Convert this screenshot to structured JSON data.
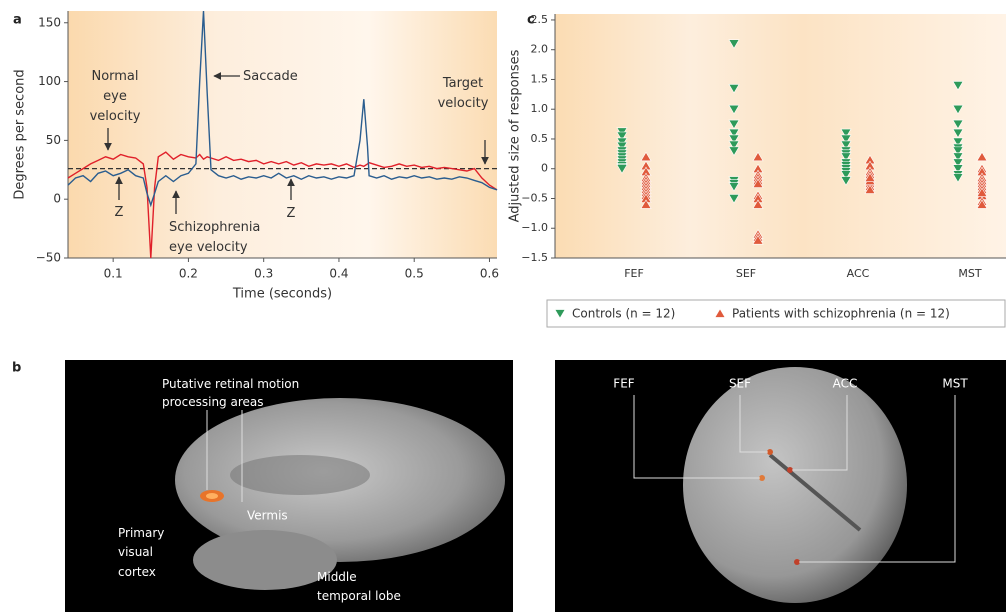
{
  "chart_data": [
    {
      "type": "line",
      "panel_label": "a",
      "ylabel": "Degrees per second",
      "xlabel": "Time (seconds)",
      "xlim": [
        0.04,
        0.61
      ],
      "ylim": [
        -50,
        160
      ],
      "xticks": [
        0.1,
        0.2,
        0.3,
        0.4,
        0.5,
        0.6
      ],
      "yticks": [
        {
          "value": -50,
          "label": "−50"
        },
        0,
        50,
        100,
        150
      ],
      "x": [
        0.04,
        0.05,
        0.06,
        0.07,
        0.08,
        0.09,
        0.1,
        0.11,
        0.12,
        0.13,
        0.14,
        0.145,
        0.15,
        0.155,
        0.16,
        0.17,
        0.18,
        0.19,
        0.2,
        0.21,
        0.215,
        0.22,
        0.225,
        0.23,
        0.24,
        0.25,
        0.26,
        0.27,
        0.28,
        0.29,
        0.3,
        0.31,
        0.32,
        0.33,
        0.34,
        0.35,
        0.36,
        0.37,
        0.38,
        0.39,
        0.4,
        0.41,
        0.42,
        0.428,
        0.433,
        0.438,
        0.44,
        0.45,
        0.46,
        0.47,
        0.48,
        0.49,
        0.5,
        0.51,
        0.52,
        0.53,
        0.54,
        0.55,
        0.56,
        0.57,
        0.58,
        0.59,
        0.6,
        0.61
      ],
      "series": [
        {
          "color": "#e0202a",
          "values": [
            18,
            22,
            26,
            30,
            33,
            36,
            34,
            38,
            36,
            35,
            30,
            10,
            -50,
            10,
            36,
            40,
            34,
            38,
            36,
            35,
            38,
            34,
            36,
            35,
            33,
            36,
            33,
            34,
            32,
            33,
            30,
            32,
            30,
            32,
            29,
            31,
            28,
            30,
            29,
            30,
            28,
            30,
            27,
            29,
            28,
            30,
            31,
            29,
            27,
            28,
            30,
            28,
            29,
            27,
            28,
            26,
            27,
            26,
            25,
            24,
            26,
            18,
            12,
            8
          ]
        },
        {
          "color": "#2a5d8f",
          "values": [
            12,
            18,
            20,
            15,
            22,
            24,
            20,
            22,
            25,
            20,
            18,
            5,
            -5,
            5,
            15,
            20,
            15,
            20,
            22,
            30,
            100,
            160,
            90,
            25,
            20,
            18,
            20,
            17,
            19,
            18,
            20,
            18,
            22,
            18,
            20,
            17,
            20,
            18,
            19,
            17,
            19,
            18,
            20,
            50,
            85,
            45,
            20,
            18,
            20,
            17,
            19,
            18,
            20,
            18,
            19,
            17,
            18,
            17,
            19,
            18,
            16,
            14,
            10,
            8
          ]
        }
      ],
      "reference_line": {
        "value": 26,
        "color": "#333333"
      },
      "annotations": [
        {
          "lines": [
            "Normal",
            "eye",
            "velocity"
          ]
        },
        {
          "lines": [
            "Saccade"
          ]
        },
        {
          "lines": [
            "Target",
            "velocity"
          ]
        },
        {
          "lines": [
            "Z"
          ]
        },
        {
          "lines": [
            "Z"
          ]
        },
        {
          "lines": [
            "Schizophrenia",
            "eye velocity"
          ]
        }
      ]
    },
    {
      "type": "scatter",
      "panel_label": "c",
      "ylabel": "Adjusted size of responses",
      "categories": [
        "FEF",
        "SEF",
        "ACC",
        "MST"
      ],
      "ylim": [
        -1.5,
        2.6
      ],
      "yticks": [
        {
          "value": -1.5,
          "label": "−1.5"
        },
        {
          "value": -1,
          "label": "−1.0"
        },
        {
          "value": -0.5,
          "label": "−0.5"
        },
        0,
        0.5,
        {
          "value": 1,
          "label": "1.0"
        },
        1.5,
        {
          "value": 2,
          "label": "2.0"
        },
        2.5
      ],
      "series": [
        {
          "name": "Controls (n = 12)",
          "color": "#2e9a5a",
          "marker": "triangle-down",
          "values": [
            [
              0.62,
              0.55,
              0.45,
              0.38,
              0.3,
              0.25,
              0.2,
              0.15,
              0.1,
              0.05,
              0.02,
              0.0
            ],
            [
              2.1,
              1.35,
              1.0,
              0.75,
              0.6,
              0.5,
              0.4,
              0.3,
              -0.2,
              -0.25,
              -0.3,
              -0.5
            ],
            [
              0.6,
              0.5,
              0.4,
              0.3,
              0.25,
              0.2,
              0.1,
              0.05,
              0.0,
              -0.05,
              -0.1,
              -0.2
            ],
            [
              1.4,
              1.0,
              0.75,
              0.6,
              0.45,
              0.35,
              0.3,
              0.2,
              0.1,
              0.0,
              -0.1,
              -0.15
            ]
          ]
        },
        {
          "name": "Patients with schizophrenia (n = 12)",
          "color": "#e05a3c",
          "marker": "triangle-up",
          "values": [
            [
              0.2,
              0.05,
              -0.05,
              -0.15,
              -0.2,
              -0.25,
              -0.3,
              -0.35,
              -0.4,
              -0.45,
              -0.5,
              -0.6
            ],
            [
              0.2,
              0.0,
              -0.1,
              -0.15,
              -0.2,
              -0.25,
              -0.45,
              -0.5,
              -0.6,
              -1.1,
              -1.15,
              -1.2
            ],
            [
              0.15,
              0.05,
              -0.05,
              -0.1,
              -0.15,
              -0.2,
              -0.25,
              -0.3,
              -0.3,
              -0.35,
              -0.2,
              -0.15
            ],
            [
              0.2,
              0.0,
              -0.05,
              -0.15,
              -0.2,
              -0.25,
              -0.3,
              -0.35,
              -0.45,
              -0.55,
              -0.6,
              -0.4
            ]
          ]
        }
      ]
    }
  ],
  "figure": {
    "panel_label": "b",
    "left_image": {
      "labels": [
        {
          "lines": [
            "Putative retinal motion",
            "processing areas"
          ]
        },
        {
          "lines": [
            "Vermis"
          ]
        },
        {
          "lines": [
            "Primary",
            "visual",
            "cortex"
          ]
        },
        {
          "lines": [
            "Middle",
            "temporal lobe"
          ]
        }
      ]
    },
    "right_image": {
      "labels": [
        "FEF",
        "SEF",
        "ACC",
        "MST"
      ]
    }
  }
}
